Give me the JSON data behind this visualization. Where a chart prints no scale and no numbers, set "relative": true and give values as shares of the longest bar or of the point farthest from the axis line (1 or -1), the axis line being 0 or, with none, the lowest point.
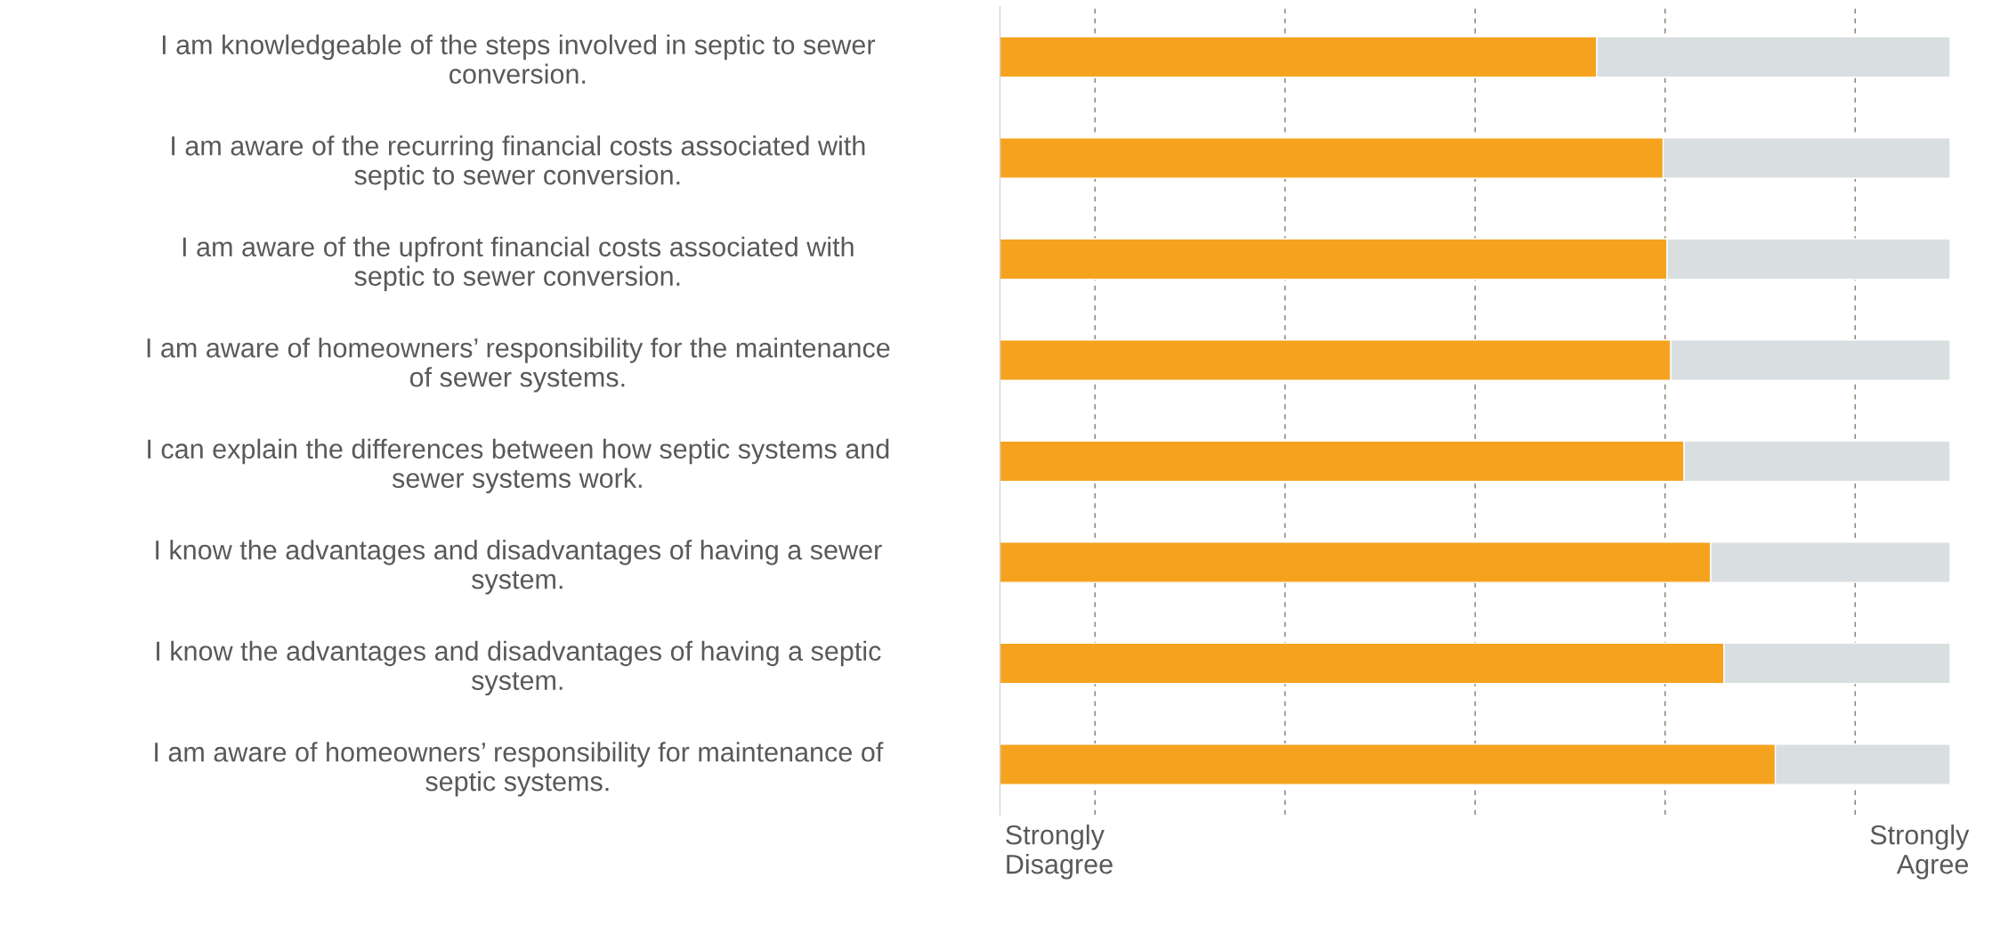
{
  "chart_data": {
    "type": "bar",
    "orientation": "horizontal",
    "relative": true,
    "stacked": true,
    "categories": [
      "I am knowledgeable of the steps involved in septic to sewer conversion.",
      "I am aware of the recurring financial costs associated with septic to sewer conversion.",
      "I am aware of the upfront financial costs associated with septic to sewer conversion.",
      "I am aware of homeowners’ responsibility for the maintenance of sewer systems.",
      "I can explain the differences between how septic systems and sewer systems work.",
      "I know the advantages and disadvantages of having a sewer system.",
      "I know the advantages and disadvantages of having a septic system.",
      "I am aware of homeowners’ responsibility for maintenance of septic systems."
    ],
    "series": [
      {
        "color": "#f5a31f",
        "values": [
          0.628,
          0.698,
          0.702,
          0.706,
          0.72,
          0.748,
          0.762,
          0.816
        ]
      },
      {
        "color": "#d9dfe0",
        "values": [
          0.372,
          0.302,
          0.298,
          0.294,
          0.28,
          0.252,
          0.238,
          0.184
        ]
      }
    ],
    "annotations": [
      "Strongly\nDisagree",
      "Strongly\nAgree"
    ],
    "grid": "x",
    "line_style": "dashed"
  }
}
